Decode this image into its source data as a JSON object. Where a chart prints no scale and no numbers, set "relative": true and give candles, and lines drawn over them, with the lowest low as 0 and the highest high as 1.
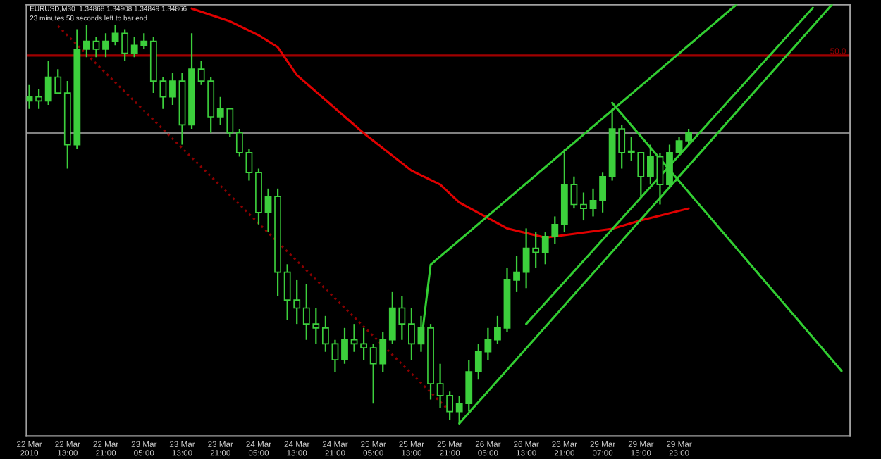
{
  "chart_data": {
    "type": "candlestick",
    "relative": true,
    "tick_labels": "x",
    "grid": false,
    "legend": false,
    "color": "#3ccf3c",
    "annotations": [
      "EURUSD,M30  1.34868 1.34908 1.34849 1.34866",
      "23 minutes 58 seconds left to bar end",
      {
        "text": "50.0",
        "y": 0.924
      }
    ],
    "categories": [
      "22 Mar 2010",
      null,
      null,
      null,
      "22 Mar 13:00",
      null,
      null,
      null,
      "22 Mar 21:00",
      null,
      null,
      null,
      "23 Mar 05:00",
      null,
      null,
      null,
      "23 Mar 13:00",
      null,
      null,
      null,
      "23 Mar 21:00",
      null,
      null,
      null,
      "24 Mar 05:00",
      null,
      null,
      null,
      "24 Mar 13:00",
      null,
      null,
      null,
      "24 Mar 21:00",
      null,
      null,
      null,
      "25 Mar 05:00",
      null,
      null,
      null,
      "25 Mar 13:00",
      null,
      null,
      null,
      "25 Mar 21:00",
      null,
      null,
      null,
      "26 Mar 05:00",
      null,
      null,
      null,
      "26 Mar 13:00",
      null,
      null,
      null,
      "26 Mar 21:00",
      null,
      null,
      null,
      "29 Mar 07:00",
      null,
      null,
      null,
      "29 Mar 15:00",
      null,
      null,
      null,
      "29 Mar 23:00",
      null,
      null,
      null,
      null,
      null,
      null,
      null,
      null,
      null,
      null,
      null,
      null,
      null,
      null,
      null,
      null,
      null
    ],
    "ohlc": [
      [
        0.81,
        0.85,
        0.79,
        0.82
      ],
      [
        0.82,
        0.84,
        0.79,
        0.81
      ],
      [
        0.81,
        0.91,
        0.8,
        0.87
      ],
      [
        0.87,
        0.89,
        0.83,
        0.83
      ],
      [
        0.83,
        0.86,
        0.64,
        0.7
      ],
      [
        0.7,
        0.99,
        0.69,
        0.94
      ],
      [
        0.94,
        1.0,
        0.92,
        0.96
      ],
      [
        0.96,
        0.97,
        0.92,
        0.94
      ],
      [
        0.94,
        0.98,
        0.92,
        0.96
      ],
      [
        0.96,
        1.0,
        0.95,
        0.98
      ],
      [
        0.98,
        0.99,
        0.91,
        0.93
      ],
      [
        0.93,
        0.97,
        0.92,
        0.95
      ],
      [
        0.95,
        0.98,
        0.94,
        0.96
      ],
      [
        0.96,
        0.97,
        0.83,
        0.86
      ],
      [
        0.86,
        0.87,
        0.79,
        0.82
      ],
      [
        0.82,
        0.88,
        0.8,
        0.86
      ],
      [
        0.86,
        0.88,
        0.7,
        0.75
      ],
      [
        0.75,
        0.98,
        0.74,
        0.89
      ],
      [
        0.89,
        0.91,
        0.85,
        0.86
      ],
      [
        0.86,
        0.87,
        0.73,
        0.77
      ],
      [
        0.77,
        0.82,
        0.75,
        0.79
      ],
      [
        0.79,
        0.79,
        0.72,
        0.73
      ],
      [
        0.73,
        0.74,
        0.67,
        0.68
      ],
      [
        0.68,
        0.69,
        0.61,
        0.63
      ],
      [
        0.63,
        0.64,
        0.5,
        0.53
      ],
      [
        0.53,
        0.59,
        0.48,
        0.57
      ],
      [
        0.57,
        0.59,
        0.32,
        0.38
      ],
      [
        0.38,
        0.4,
        0.26,
        0.31
      ],
      [
        0.31,
        0.36,
        0.25,
        0.29
      ],
      [
        0.29,
        0.35,
        0.21,
        0.25
      ],
      [
        0.25,
        0.29,
        0.2,
        0.24
      ],
      [
        0.24,
        0.27,
        0.18,
        0.2
      ],
      [
        0.2,
        0.21,
        0.13,
        0.16
      ],
      [
        0.16,
        0.24,
        0.15,
        0.21
      ],
      [
        0.21,
        0.25,
        0.18,
        0.2
      ],
      [
        0.2,
        0.24,
        0.16,
        0.19
      ],
      [
        0.19,
        0.2,
        0.05,
        0.15
      ],
      [
        0.15,
        0.23,
        0.13,
        0.21
      ],
      [
        0.21,
        0.33,
        0.2,
        0.29
      ],
      [
        0.29,
        0.32,
        0.21,
        0.25
      ],
      [
        0.25,
        0.29,
        0.16,
        0.2
      ],
      [
        0.2,
        0.27,
        0.18,
        0.24
      ],
      [
        0.24,
        0.25,
        0.06,
        0.1
      ],
      [
        0.1,
        0.15,
        0.04,
        0.07
      ],
      [
        0.07,
        0.08,
        0.01,
        0.03
      ],
      [
        0.03,
        0.07,
        0.0,
        0.05
      ],
      [
        0.05,
        0.16,
        0.03,
        0.13
      ],
      [
        0.13,
        0.2,
        0.11,
        0.18
      ],
      [
        0.18,
        0.24,
        0.16,
        0.21
      ],
      [
        0.21,
        0.27,
        0.2,
        0.24
      ],
      [
        0.24,
        0.39,
        0.23,
        0.36
      ],
      [
        0.36,
        0.42,
        0.33,
        0.38
      ],
      [
        0.38,
        0.49,
        0.34,
        0.44
      ],
      [
        0.44,
        0.48,
        0.39,
        0.43
      ],
      [
        0.43,
        0.48,
        0.4,
        0.47
      ],
      [
        0.47,
        0.52,
        0.45,
        0.5
      ],
      [
        0.5,
        0.69,
        0.48,
        0.6
      ],
      [
        0.6,
        0.62,
        0.54,
        0.55
      ],
      [
        0.55,
        0.58,
        0.51,
        0.54
      ],
      [
        0.54,
        0.59,
        0.52,
        0.56
      ],
      [
        0.56,
        0.63,
        0.53,
        0.62
      ],
      [
        0.62,
        0.79,
        0.61,
        0.74
      ],
      [
        0.74,
        0.75,
        0.64,
        0.68
      ],
      [
        0.68,
        0.72,
        0.66,
        0.68
      ],
      [
        0.68,
        0.68,
        0.57,
        0.62
      ],
      [
        0.62,
        0.7,
        0.6,
        0.67
      ],
      [
        0.67,
        0.68,
        0.55,
        0.6
      ],
      [
        0.6,
        0.7,
        0.59,
        0.68
      ],
      [
        0.68,
        0.72,
        0.68,
        0.71
      ],
      [
        0.71,
        0.74,
        0.7,
        0.73
      ],
      null,
      null,
      null,
      null,
      null,
      null,
      null,
      null,
      null,
      null,
      null,
      null,
      null,
      null,
      null,
      null
    ],
    "series": [
      {
        "type": "line",
        "color": "#e00000",
        "line_style": "solid",
        "values": [
          null,
          null,
          null,
          null,
          null,
          null,
          null,
          null,
          null,
          null,
          null,
          null,
          null,
          null,
          null,
          null,
          null,
          1.042,
          null,
          null,
          null,
          1.01,
          null,
          null,
          0.975,
          null,
          0.945,
          null,
          0.875,
          null,
          null,
          null,
          null,
          null,
          null,
          0.729,
          null,
          null,
          null,
          null,
          0.635,
          null,
          null,
          0.6,
          null,
          0.555,
          null,
          null,
          null,
          null,
          0.49,
          null,
          null,
          null,
          0.467,
          null,
          null,
          null,
          null,
          null,
          null,
          0.489,
          null,
          null,
          0.51,
          null,
          null,
          null,
          null,
          0.54,
          null,
          null,
          null,
          null,
          null,
          null,
          null,
          null,
          null,
          null,
          null,
          null,
          null,
          null,
          null,
          null
        ]
      },
      {
        "type": "line",
        "color": "#8b0000",
        "line_style": "dotted",
        "values": [
          null,
          null,
          null,
          0.998,
          null,
          null,
          null,
          null,
          null,
          null,
          null,
          null,
          null,
          null,
          null,
          null,
          null,
          null,
          null,
          null,
          null,
          null,
          null,
          null,
          null,
          null,
          null,
          null,
          null,
          null,
          null,
          null,
          null,
          null,
          null,
          null,
          null,
          null,
          null,
          null,
          null,
          null,
          null,
          null,
          0.031,
          null,
          null,
          null,
          null,
          null,
          null,
          null,
          null,
          null,
          null,
          null,
          null,
          null,
          null,
          null,
          null,
          null,
          null,
          null,
          null,
          null,
          null,
          null,
          null,
          null,
          null,
          null,
          null,
          null,
          null,
          null,
          null,
          null,
          null,
          null,
          null,
          null,
          null,
          null,
          null,
          null
        ]
      },
      {
        "type": "line",
        "color": "#32cd32",
        "line_style": "solid",
        "values": [
          null,
          null,
          null,
          null,
          null,
          null,
          null,
          null,
          null,
          null,
          null,
          null,
          null,
          null,
          null,
          null,
          null,
          null,
          null,
          null,
          null,
          null,
          null,
          null,
          null,
          null,
          null,
          null,
          null,
          null,
          null,
          null,
          null,
          null,
          null,
          null,
          null,
          null,
          null,
          null,
          null,
          0.203,
          0.399,
          null,
          null,
          null,
          null,
          null,
          null,
          null,
          null,
          null,
          null,
          null,
          null,
          null,
          null,
          null,
          null,
          null,
          null,
          null,
          null,
          null,
          null,
          null,
          null,
          null,
          null,
          null,
          null,
          null,
          null,
          null,
          1.052,
          null,
          null,
          null,
          null,
          null,
          null,
          null,
          null,
          null,
          null,
          null
        ]
      },
      {
        "type": "line",
        "color": "#32cd32",
        "line_style": "solid",
        "values": [
          null,
          null,
          null,
          null,
          null,
          null,
          null,
          null,
          null,
          null,
          null,
          null,
          null,
          null,
          null,
          null,
          null,
          null,
          null,
          null,
          null,
          null,
          null,
          null,
          null,
          null,
          null,
          null,
          null,
          null,
          null,
          null,
          null,
          null,
          null,
          null,
          null,
          null,
          null,
          null,
          null,
          null,
          null,
          null,
          null,
          null,
          null,
          null,
          null,
          null,
          null,
          null,
          0.25,
          null,
          null,
          null,
          null,
          null,
          null,
          null,
          null,
          null,
          null,
          null,
          null,
          null,
          null,
          null,
          null,
          null,
          null,
          null,
          null,
          null,
          null,
          null,
          null,
          null,
          null,
          null,
          null,
          null,
          1.044,
          null,
          null,
          null
        ]
      },
      {
        "type": "line",
        "color": "#32cd32",
        "line_style": "solid",
        "values": [
          null,
          null,
          null,
          null,
          null,
          null,
          null,
          null,
          null,
          null,
          null,
          null,
          null,
          null,
          null,
          null,
          null,
          null,
          null,
          null,
          null,
          null,
          null,
          null,
          null,
          null,
          null,
          null,
          null,
          null,
          null,
          null,
          null,
          null,
          null,
          null,
          null,
          null,
          null,
          null,
          null,
          null,
          null,
          null,
          null,
          0.0,
          null,
          null,
          null,
          null,
          null,
          null,
          null,
          null,
          null,
          null,
          null,
          null,
          null,
          null,
          null,
          null,
          null,
          null,
          null,
          null,
          null,
          null,
          null,
          null,
          null,
          null,
          null,
          null,
          null,
          null,
          null,
          null,
          null,
          null,
          null,
          null,
          null,
          null,
          1.052,
          null
        ]
      },
      {
        "type": "line",
        "color": "#32cd32",
        "line_style": "solid",
        "values": [
          null,
          null,
          null,
          null,
          null,
          null,
          null,
          null,
          null,
          null,
          null,
          null,
          null,
          null,
          null,
          null,
          null,
          null,
          null,
          null,
          null,
          null,
          null,
          null,
          null,
          null,
          null,
          null,
          null,
          null,
          null,
          null,
          null,
          null,
          null,
          null,
          null,
          null,
          null,
          null,
          null,
          null,
          null,
          null,
          null,
          null,
          null,
          null,
          null,
          null,
          null,
          null,
          null,
          null,
          null,
          null,
          null,
          null,
          null,
          null,
          null,
          0.805,
          null,
          null,
          null,
          null,
          null,
          null,
          null,
          null,
          null,
          null,
          null,
          null,
          null,
          null,
          null,
          null,
          null,
          null,
          null,
          null,
          null,
          null,
          null,
          0.132
        ]
      }
    ],
    "ref_lines": [
      {
        "axis": "y",
        "value": 0.924,
        "color": "#a00000",
        "line_style": "solid"
      },
      {
        "axis": "y",
        "value": 0.729,
        "color": "#808080",
        "line_style": "solid"
      }
    ]
  }
}
